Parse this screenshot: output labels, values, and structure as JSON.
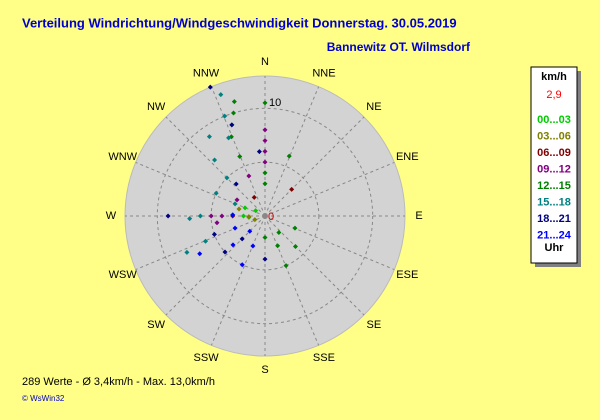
{
  "chart_data": {
    "type": "polar-scatter",
    "title": "Verteilung Windrichtung/Windgeschwindigkeit  Donnerstag. 30.05.2019",
    "subtitle": "Bannewitz OT. Wilmsdorf",
    "direction_labels": [
      "N",
      "NNE",
      "NE",
      "ENE",
      "E",
      "ESE",
      "SE",
      "SSE",
      "S",
      "SSW",
      "SW",
      "WSW",
      "W",
      "WNW",
      "NW",
      "NNW"
    ],
    "rlim": [
      0,
      13
    ],
    "rgrid": [
      5,
      10
    ],
    "rticks": [
      10
    ],
    "center_label": "0",
    "legend_title": "km/h",
    "legend_current": "2,9",
    "legend_unit": "Uhr",
    "series": [
      {
        "name": "00...03",
        "color": "#00cc00",
        "x": [
          270,
          272,
          292,
          265,
          300
        ],
        "values": [
          2,
          3,
          2,
          1.5,
          1
        ]
      },
      {
        "name": "03...06",
        "color": "#808000",
        "x": [
          268,
          250,
          285
        ],
        "values": [
          1.5,
          1,
          2.5
        ]
      },
      {
        "name": "06...09",
        "color": "#800000",
        "x": [
          45,
          270,
          330
        ],
        "values": [
          3.5,
          3,
          2
        ]
      },
      {
        "name": "09...12",
        "color": "#800080",
        "x": [
          0,
          0,
          0,
          0,
          338,
          270,
          270,
          262,
          300
        ],
        "values": [
          5,
          6,
          7,
          8,
          4,
          4,
          5,
          4.5,
          3
        ]
      },
      {
        "name": "12...15",
        "color": "#008000",
        "x": [
          337,
          337,
          340,
          343,
          345,
          0,
          0,
          157,
          157,
          140,
          135,
          112,
          180,
          22,
          0
        ],
        "values": [
          6,
          8,
          9,
          10,
          11,
          3,
          4,
          3,
          5,
          2,
          4,
          3,
          2,
          6,
          10.5
        ]
      },
      {
        "name": "15...18",
        "color": "#008080",
        "x": [
          335,
          338,
          340,
          315,
          318,
          292,
          295,
          270,
          268,
          247,
          245,
          325
        ],
        "values": [
          8,
          10,
          12,
          5,
          7,
          3,
          5,
          6,
          7,
          6,
          8,
          9
        ]
      },
      {
        "name": "18...21",
        "color": "#000080",
        "x": [
          337,
          340,
          355,
          270,
          250,
          225,
          228,
          180,
          318
        ],
        "values": [
          13,
          9,
          6,
          9,
          5,
          3,
          5,
          4,
          4
        ]
      },
      {
        "name": "21...24",
        "color": "#0000ff",
        "x": [
          202,
          205,
          225,
          228,
          248,
          272,
          240
        ],
        "values": [
          3,
          5,
          2,
          4,
          3,
          3,
          7
        ]
      }
    ],
    "footer": "289 Werte  -  Ø 3,4km/h  -  Max. 13,0km/h",
    "copyright": "© WsWin32"
  }
}
